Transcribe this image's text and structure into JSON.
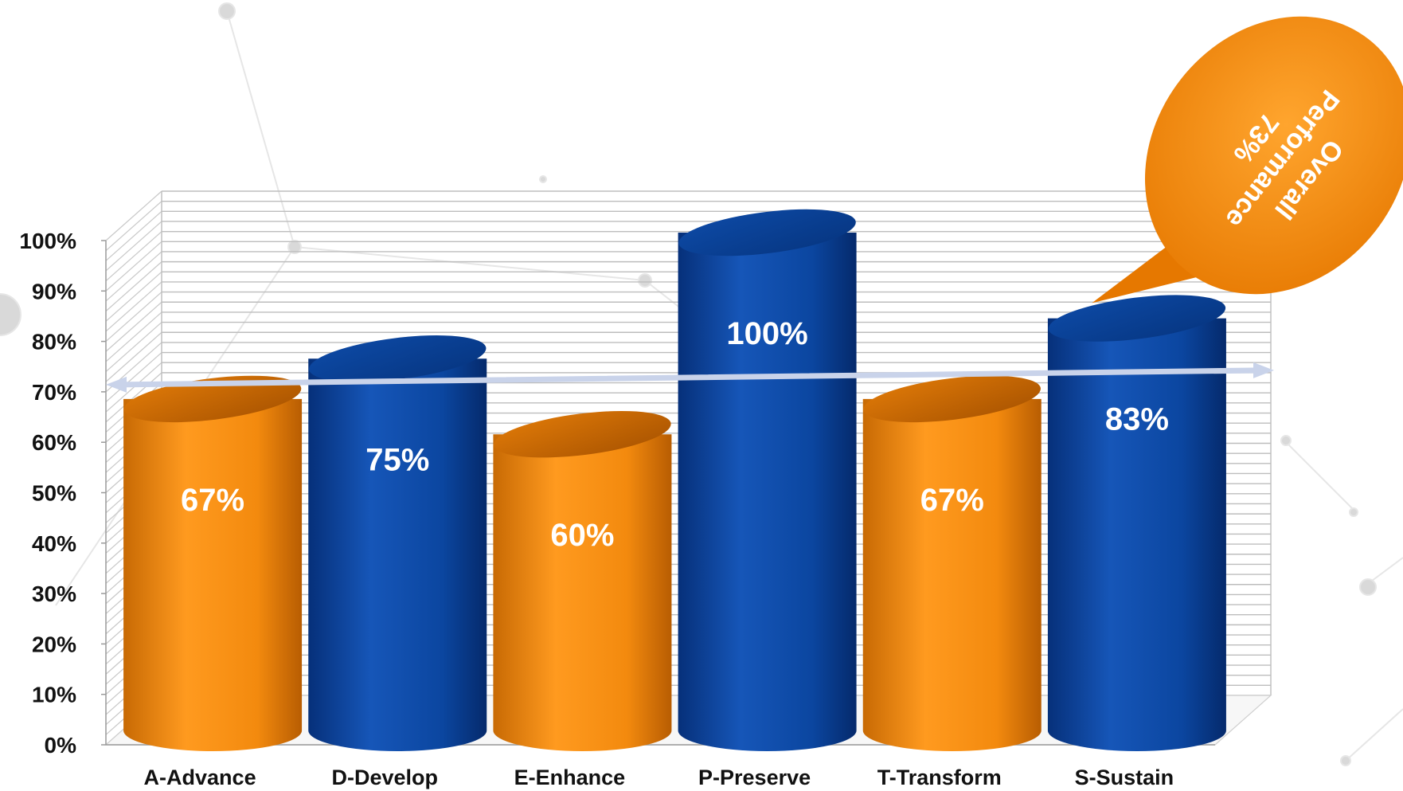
{
  "chart_data": {
    "type": "bar",
    "categories": [
      "A-Advance",
      "D-Develop",
      "E-Enhance",
      "P-Preserve",
      "T-Transform",
      "S-Sustain"
    ],
    "values": [
      67,
      75,
      60,
      100,
      67,
      83
    ],
    "value_labels": [
      "67%",
      "75%",
      "60%",
      "100%",
      "67%",
      "83%"
    ],
    "bar_colors": [
      "#f08a0c",
      "#0b46a0",
      "#f08a0c",
      "#0b46a0",
      "#f08a0c",
      "#0b46a0"
    ],
    "y_ticks": [
      "0%",
      "10%",
      "20%",
      "30%",
      "40%",
      "50%",
      "60%",
      "70%",
      "80%",
      "90%",
      "100%"
    ],
    "ylim": [
      0,
      100
    ],
    "grid": true,
    "reference_line": {
      "value": 73
    },
    "callout": {
      "line1": "Overall",
      "line2": "Performance",
      "line3": "73%",
      "color": "#f08a0c"
    },
    "title": "",
    "xlabel": "",
    "ylabel": ""
  }
}
